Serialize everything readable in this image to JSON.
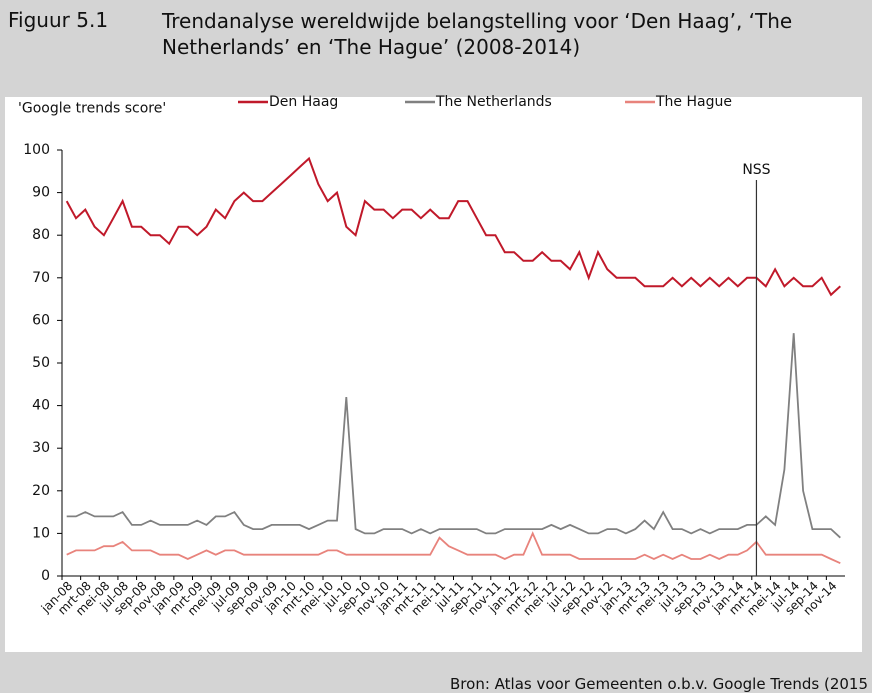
{
  "chart_data": {
    "type": "line",
    "label": "Figuur 5.1",
    "title": "Trendanalyse wereldwijde belangstelling voor ‘Den Haag’, ‘The Netherlands’ en ‘The Hague’ (2008-2014)",
    "y_label": "'Google trends score'",
    "source": "Bron: Atlas voor Gemeenten o.b.v. Google Trends (2015",
    "categories": [
      "jan-08",
      null,
      "mrt-08",
      null,
      "mei-08",
      null,
      "jul-08",
      null,
      "sep-08",
      null,
      "nov-08",
      null,
      "jan-09",
      null,
      "mrt-09",
      null,
      "mei-09",
      null,
      "jul-09",
      null,
      "sep-09",
      null,
      "nov-09",
      null,
      "jan-10",
      null,
      "mrt-10",
      null,
      "mei-10",
      null,
      "jul-10",
      null,
      "sep-10",
      null,
      "nov-10",
      null,
      "jan-11",
      null,
      "mrt-11",
      null,
      "mei-11",
      null,
      "jul-11",
      null,
      "sep-11",
      null,
      "nov-11",
      null,
      "jan-12",
      null,
      "mrt-12",
      null,
      "mei-12",
      null,
      "jul-12",
      null,
      "sep-12",
      null,
      "nov-12",
      null,
      "jan-13",
      null,
      "mrt-13",
      null,
      "mei-13",
      null,
      "jul-13",
      null,
      "sep-13",
      null,
      "nov-13",
      null,
      "jan-14",
      null,
      "mrt-14",
      null,
      "mei-14",
      null,
      "jul-14",
      null,
      "sep-14",
      null,
      "nov-14",
      null
    ],
    "series": [
      {
        "name": "Den Haag",
        "color": "#c0192a",
        "values": [
          88,
          84,
          86,
          82,
          80,
          84,
          88,
          82,
          82,
          80,
          80,
          78,
          82,
          82,
          80,
          82,
          86,
          84,
          88,
          90,
          88,
          88,
          90,
          92,
          94,
          96,
          98,
          92,
          88,
          90,
          82,
          80,
          88,
          86,
          86,
          84,
          86,
          86,
          84,
          86,
          84,
          84,
          88,
          88,
          84,
          80,
          80,
          76,
          76,
          74,
          74,
          76,
          74,
          74,
          72,
          76,
          70,
          76,
          72,
          70,
          70,
          70,
          68,
          68,
          68,
          70,
          68,
          70,
          68,
          70,
          68,
          70,
          68,
          70,
          70,
          68,
          72,
          68,
          70,
          68,
          68,
          70,
          66,
          68
        ]
      },
      {
        "name": "The Netherlands",
        "color": "#808080",
        "values": [
          14,
          14,
          15,
          14,
          14,
          14,
          15,
          12,
          12,
          13,
          12,
          12,
          12,
          12,
          13,
          12,
          14,
          14,
          15,
          12,
          11,
          11,
          12,
          12,
          12,
          12,
          11,
          12,
          13,
          13,
          42,
          11,
          10,
          10,
          11,
          11,
          11,
          10,
          11,
          10,
          11,
          11,
          11,
          11,
          11,
          10,
          10,
          11,
          11,
          11,
          11,
          11,
          12,
          11,
          12,
          11,
          10,
          10,
          11,
          11,
          10,
          11,
          13,
          11,
          15,
          11,
          11,
          10,
          11,
          10,
          11,
          11,
          11,
          12,
          12,
          14,
          12,
          25,
          57,
          20,
          11,
          11,
          11,
          9
        ]
      },
      {
        "name": "The Hague",
        "color": "#e8837c",
        "values": [
          5,
          6,
          6,
          6,
          7,
          7,
          8,
          6,
          6,
          6,
          5,
          5,
          5,
          4,
          5,
          6,
          5,
          6,
          6,
          5,
          5,
          5,
          5,
          5,
          5,
          5,
          5,
          5,
          6,
          6,
          5,
          5,
          5,
          5,
          5,
          5,
          5,
          5,
          5,
          5,
          9,
          7,
          6,
          5,
          5,
          5,
          5,
          4,
          5,
          5,
          10,
          5,
          5,
          5,
          5,
          4,
          4,
          4,
          4,
          4,
          4,
          4,
          5,
          4,
          5,
          4,
          5,
          4,
          4,
          5,
          4,
          5,
          5,
          6,
          8,
          5,
          5,
          5,
          5,
          5,
          5,
          5,
          4,
          3
        ]
      }
    ],
    "annotations": [
      {
        "text": "NSS",
        "category": "mrt-14"
      }
    ],
    "ylim": [
      0,
      100
    ],
    "yticks": [
      0,
      10,
      20,
      30,
      40,
      50,
      60,
      70,
      80,
      90,
      100
    ]
  }
}
